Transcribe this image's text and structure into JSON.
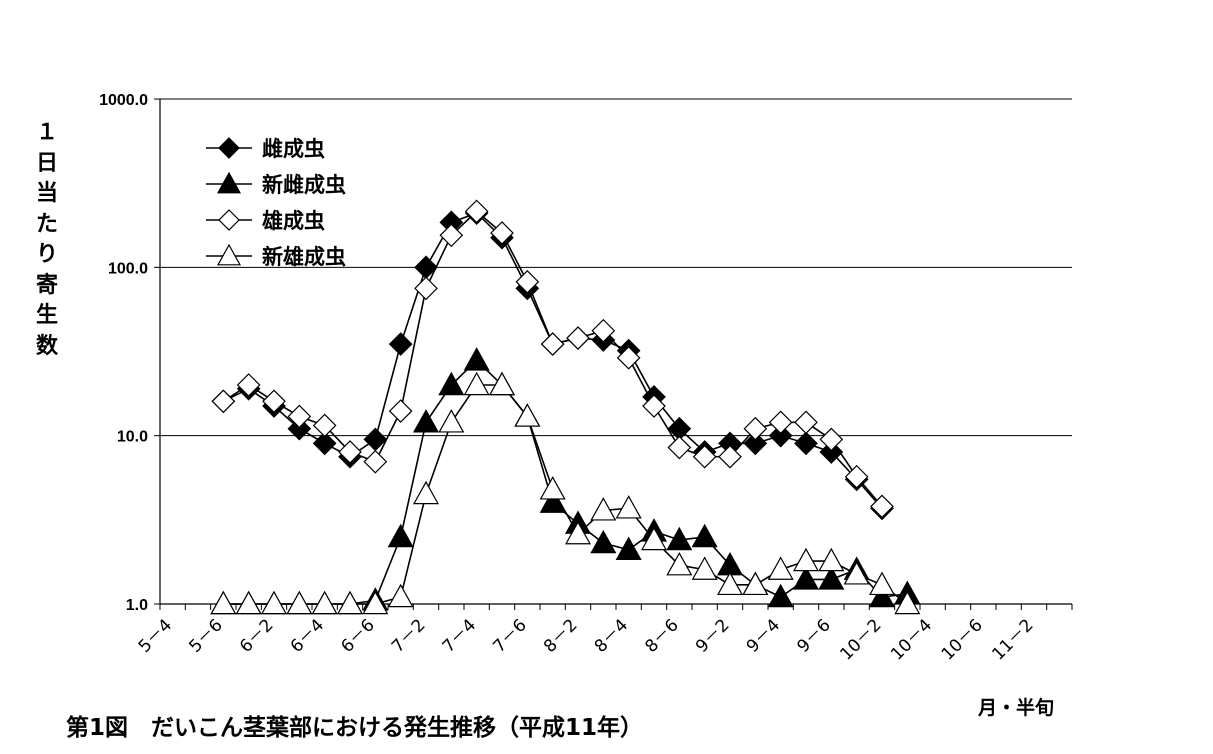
{
  "chart_data": {
    "type": "line",
    "title": "第1図　だいこん茎葉部における発生推移（平成11年）",
    "ylabel": "１日当たり寄生数",
    "xlabel": "月・半旬",
    "yscale": "log",
    "ylim": [
      1.0,
      1000.0
    ],
    "yticks": [
      "1.0",
      "10.0",
      "100.0",
      "1000.0"
    ],
    "grid": true,
    "legend_position": "top-left",
    "categories": [
      "5-4",
      "5-5",
      "5-6",
      "6-1",
      "6-2",
      "6-3",
      "6-4",
      "6-5",
      "6-6",
      "7-1",
      "7-2",
      "7-3",
      "7-4",
      "7-5",
      "7-6",
      "8-1",
      "8-2",
      "8-3",
      "8-4",
      "8-5",
      "8-6",
      "9-1",
      "9-2",
      "9-3",
      "9-4",
      "9-5",
      "9-6",
      "10-1",
      "10-2",
      "10-3",
      "10-4",
      "10-5",
      "10-6",
      "11-1",
      "11-2",
      "11-3"
    ],
    "tick_labels": [
      "5－4",
      "5－6",
      "6－2",
      "6－4",
      "6－6",
      "7－2",
      "7－4",
      "7－6",
      "8－2",
      "8－4",
      "8－6",
      "9－2",
      "9－4",
      "9－6",
      "10－2",
      "10－4",
      "10－6",
      "11－2"
    ],
    "series": [
      {
        "name": "雌成虫",
        "marker": "diamond-filled",
        "values": [
          null,
          null,
          16,
          19,
          15,
          11,
          9,
          7.5,
          9.5,
          35,
          100,
          185,
          210,
          150,
          75,
          35,
          38,
          37,
          32,
          17,
          11,
          8,
          9,
          9,
          10,
          9,
          8,
          5.5,
          3.7,
          null,
          null,
          null,
          null,
          null,
          null,
          null
        ]
      },
      {
        "name": "新雌成虫",
        "marker": "triangle-filled",
        "values": [
          null,
          null,
          1,
          1,
          1,
          1,
          1,
          1,
          1.05,
          2.5,
          12,
          20,
          28,
          20,
          13,
          4,
          3,
          2.3,
          2.1,
          2.7,
          2.4,
          2.5,
          1.7,
          1.3,
          1.1,
          1.4,
          1.4,
          1.6,
          1.1,
          1.15,
          null,
          null,
          null,
          null,
          null,
          null
        ]
      },
      {
        "name": "雄成虫",
        "marker": "diamond-open",
        "values": [
          null,
          null,
          16,
          20,
          16,
          13,
          11.5,
          8,
          7,
          14,
          75,
          155,
          215,
          160,
          82,
          35,
          38,
          42,
          29,
          15,
          8.5,
          7.5,
          7.5,
          11,
          12,
          12,
          9.5,
          5.7,
          3.8,
          null,
          null,
          null,
          null,
          null,
          null,
          null
        ]
      },
      {
        "name": "新雄成虫",
        "marker": "triangle-open",
        "values": [
          null,
          null,
          1,
          1,
          1,
          1,
          1,
          1,
          1,
          1.1,
          4.5,
          12,
          20,
          20,
          13,
          4.8,
          2.6,
          3.6,
          3.7,
          2.4,
          1.7,
          1.6,
          1.3,
          1.3,
          1.6,
          1.8,
          1.8,
          1.5,
          1.3,
          1.0,
          null,
          null,
          null,
          null,
          null,
          null
        ]
      }
    ]
  }
}
